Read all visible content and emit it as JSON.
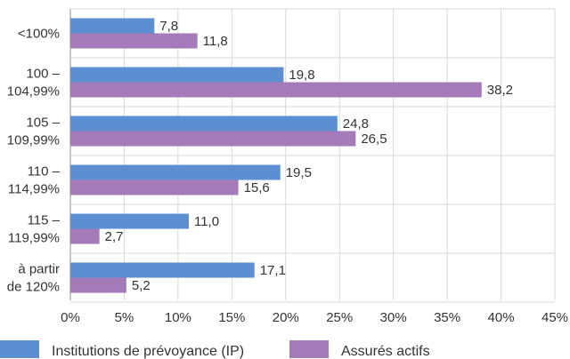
{
  "chart_data": {
    "type": "bar",
    "orientation": "horizontal",
    "categories": [
      [
        "<100%"
      ],
      [
        "100 –",
        "104,99%"
      ],
      [
        "105 –",
        "109,99%"
      ],
      [
        "110 –",
        "114,99%"
      ],
      [
        "115 –",
        "119,99%"
      ],
      [
        "à partir",
        "de 120%"
      ]
    ],
    "series": [
      {
        "name": "Institutions de prévoyance (IP)",
        "color": "#5b8fd1",
        "values": [
          7.8,
          19.8,
          24.8,
          19.5,
          11.0,
          17.1
        ],
        "labels": [
          "7,8",
          "19,8",
          "24,8",
          "19,5",
          "11,0",
          "17,1"
        ]
      },
      {
        "name": "Assurés actifs",
        "color": "#a57ab8",
        "values": [
          11.8,
          38.2,
          26.5,
          15.6,
          2.7,
          5.2
        ],
        "labels": [
          "11,8",
          "38,2",
          "26,5",
          "15,6",
          "2,7",
          "5,2"
        ]
      }
    ],
    "xlim": [
      0,
      45
    ],
    "xticks": [
      0,
      5,
      10,
      15,
      20,
      25,
      30,
      35,
      40,
      45
    ],
    "xtick_labels": [
      "0%",
      "5%",
      "10%",
      "15%",
      "20%",
      "25%",
      "30%",
      "35%",
      "40%",
      "45%"
    ],
    "grid": true,
    "legend_position": "bottom"
  }
}
